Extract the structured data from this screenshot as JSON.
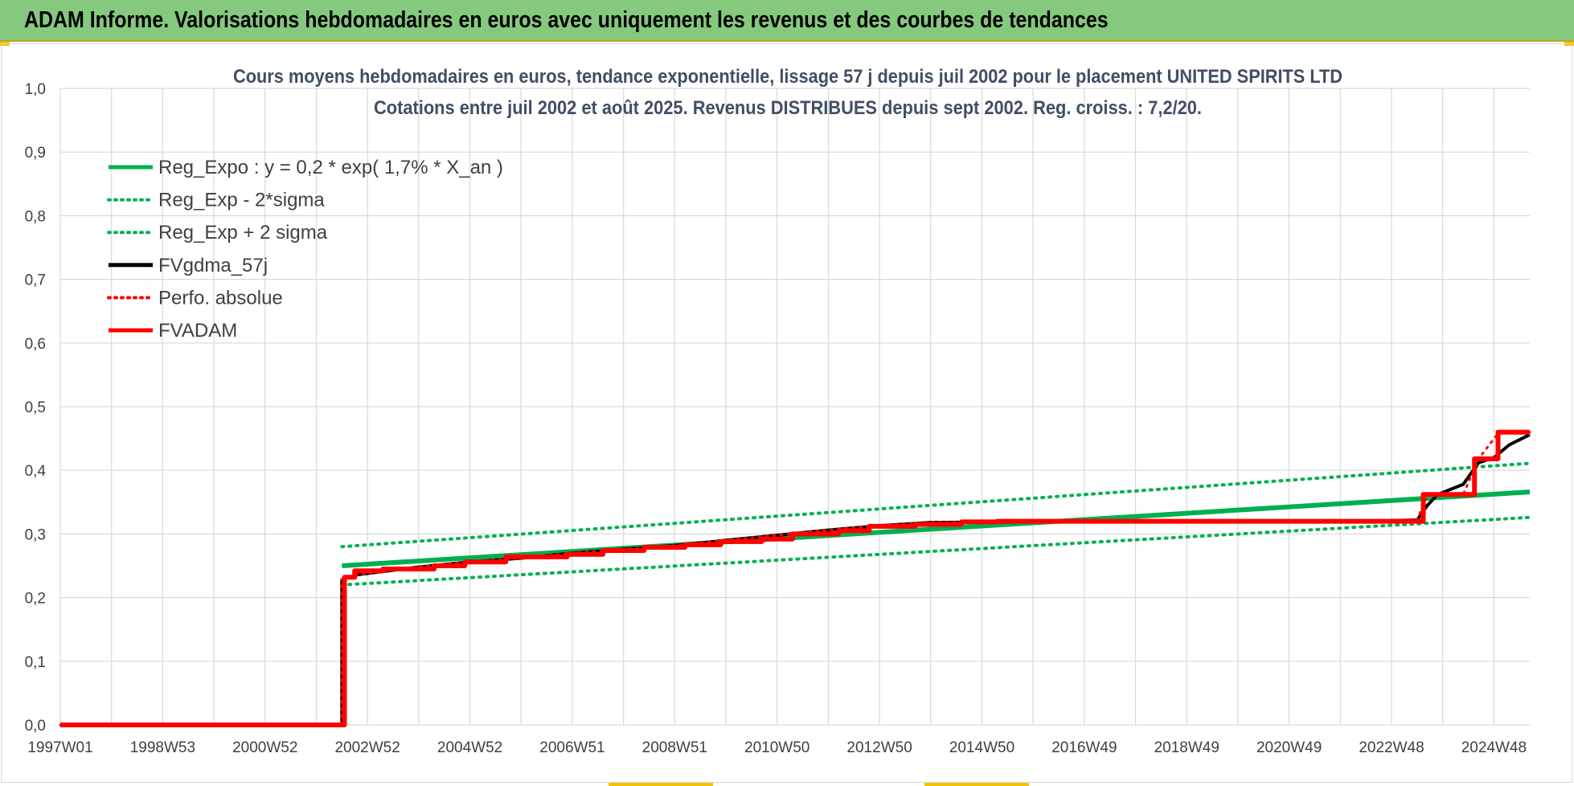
{
  "header": {
    "title": "ADAM Informe. Valorisations hebdomadaires en euros avec uniquement les revenus et des courbes de tendances"
  },
  "chart_data": {
    "type": "line",
    "title": "Cours moyens hebdomadaires en euros, tendance exponentielle, lissage 57 j depuis juil 2002 pour le placement UNITED SPIRITS LTD",
    "subtitle": "Cotations entre juil 2002 et août 2025. Revenus DISTRIBUES depuis sept 2002. Reg. croiss. : 7,2/20.",
    "xlabel": "",
    "ylabel": "",
    "x_tick_labels": [
      "1997W01",
      "1998W53",
      "2000W52",
      "2002W52",
      "2004W52",
      "2006W51",
      "2008W51",
      "2010W50",
      "2012W50",
      "2014W50",
      "2016W49",
      "2018W49",
      "2020W49",
      "2022W48",
      "2024W48"
    ],
    "x_tick_years": [
      1997.0,
      1999.0,
      2001.0,
      2003.0,
      2005.0,
      2007.0,
      2009.0,
      2011.0,
      2013.0,
      2015.0,
      2017.0,
      2019.0,
      2021.0,
      2023.0,
      2025.0
    ],
    "xlim": [
      1997.0,
      2025.7
    ],
    "ylim": [
      0,
      1.0
    ],
    "y_ticks": [
      "0,0",
      "0,1",
      "0,2",
      "0,3",
      "0,4",
      "0,5",
      "0,6",
      "0,7",
      "0,8",
      "0,9",
      "1,0"
    ],
    "y_tick_values": [
      0,
      0.1,
      0.2,
      0.3,
      0.4,
      0.5,
      0.6,
      0.7,
      0.8,
      0.9,
      1.0
    ],
    "grid": true,
    "legend_position": "top-left",
    "series": [
      {
        "name": "Reg_Expo : y = 0,2 * exp( 1,7% *  X_an )",
        "color": "#00b050",
        "style": "solid",
        "width": 6,
        "x": [
          2002.5,
          2025.7
        ],
        "y": [
          0.25,
          0.366
        ]
      },
      {
        "name": "Reg_Exp - 2*sigma",
        "color": "#00b050",
        "style": "dotted",
        "width": 4,
        "x": [
          2002.5,
          2025.7
        ],
        "y": [
          0.22,
          0.326
        ]
      },
      {
        "name": "Reg_Exp + 2 sigma",
        "color": "#00b050",
        "style": "dotted",
        "width": 4,
        "x": [
          2002.5,
          2025.7
        ],
        "y": [
          0.28,
          0.411
        ]
      },
      {
        "name": "FVgdma_57j",
        "color": "#000000",
        "style": "solid",
        "width": 4,
        "x": [
          1997.0,
          2002.5,
          2002.5,
          2002.8,
          2003.2,
          2004.0,
          2005.0,
          2006.0,
          2007.0,
          2008.0,
          2009.0,
          2010.0,
          2011.0,
          2012.0,
          2013.0,
          2014.0,
          2016.0,
          2018.0,
          2020.0,
          2022.0,
          2023.5,
          2023.7,
          2023.9,
          2024.4,
          2024.7,
          2025.0,
          2025.3,
          2025.7
        ],
        "y": [
          0.0,
          0.0,
          0.228,
          0.236,
          0.24,
          0.248,
          0.256,
          0.262,
          0.27,
          0.276,
          0.282,
          0.29,
          0.298,
          0.306,
          0.313,
          0.318,
          0.319,
          0.319,
          0.319,
          0.319,
          0.322,
          0.345,
          0.362,
          0.378,
          0.412,
          0.42,
          0.44,
          0.456
        ]
      },
      {
        "name": "Perfo. absolue",
        "color": "#ff0000",
        "style": "dotted",
        "width": 3,
        "x": [
          1997.0,
          2002.5,
          2002.5,
          2002.8,
          2003.2,
          2004.0,
          2005.0,
          2006.0,
          2007.0,
          2008.0,
          2009.0,
          2010.0,
          2011.0,
          2012.0,
          2013.0,
          2014.0,
          2016.0,
          2018.0,
          2020.0,
          2022.0,
          2023.5,
          2023.7,
          2024.4,
          2024.7,
          2025.1,
          2025.7
        ],
        "y": [
          0.0,
          0.0,
          0.228,
          0.236,
          0.24,
          0.248,
          0.256,
          0.262,
          0.27,
          0.276,
          0.282,
          0.29,
          0.298,
          0.306,
          0.313,
          0.318,
          0.319,
          0.319,
          0.319,
          0.319,
          0.322,
          0.362,
          0.362,
          0.418,
          0.46,
          0.46
        ]
      },
      {
        "name": "FVADAM",
        "color": "#ff0000",
        "style": "step",
        "width": 6,
        "x": [
          1997.0,
          2002.55,
          2002.55,
          2002.75,
          2003.3,
          2004.3,
          2004.9,
          2005.7,
          2006.9,
          2007.6,
          2008.4,
          2009.2,
          2009.9,
          2010.7,
          2011.3,
          2012.2,
          2012.8,
          2013.7,
          2014.6,
          2015.3,
          2016.5,
          2017.8,
          2019.0,
          2020.0,
          2021.0,
          2022.0,
          2023.0,
          2023.62,
          2024.05,
          2024.62,
          2025.08
        ],
        "y": [
          0.0,
          0.0,
          0.232,
          0.242,
          0.245,
          0.25,
          0.256,
          0.264,
          0.268,
          0.274,
          0.279,
          0.283,
          0.288,
          0.292,
          0.3,
          0.305,
          0.312,
          0.315,
          0.319,
          0.32,
          0.32,
          0.32,
          0.32,
          0.32,
          0.32,
          0.32,
          0.32,
          0.362,
          0.362,
          0.418,
          0.46
        ],
        "x_end": 2025.7
      }
    ]
  }
}
